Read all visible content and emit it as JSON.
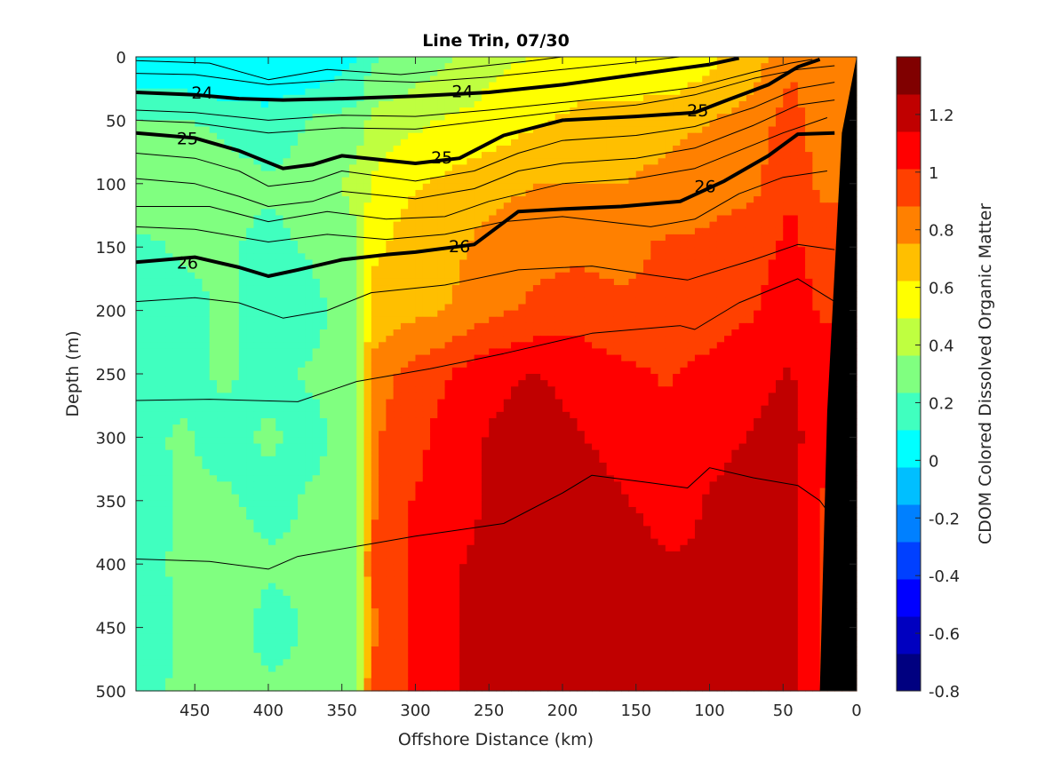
{
  "chart_data": {
    "type": "heatmap",
    "title": "Line Trin, 07/30",
    "xlabel": "Offshore Distance (km)",
    "ylabel": "Depth (m)",
    "colorbar_label": "CDOM Colored Dissolved Organic Matter",
    "x_axis_reversed": true,
    "y_axis_reversed": true,
    "xlim": [
      0,
      490
    ],
    "ylim": [
      0,
      500
    ],
    "x_ticks": [
      450,
      400,
      350,
      300,
      250,
      200,
      150,
      100,
      50,
      0
    ],
    "x_tick_labels": [
      "450",
      "400",
      "350",
      "300",
      "250",
      "200",
      "150",
      "100",
      "50",
      "0"
    ],
    "y_ticks": [
      0,
      50,
      100,
      150,
      200,
      250,
      300,
      350,
      400,
      450,
      500
    ],
    "y_tick_labels": [
      "0",
      "50",
      "100",
      "150",
      "200",
      "250",
      "300",
      "350",
      "400",
      "450",
      "500"
    ],
    "clim": [
      -0.8,
      1.4
    ],
    "colorbar_ticks": [
      -0.8,
      -0.6,
      -0.4,
      -0.2,
      0,
      0.2,
      0.4,
      0.6,
      0.8,
      1,
      1.2
    ],
    "colorbar_tick_labels": [
      "-0.8",
      "-0.6",
      "-0.4",
      "-0.2",
      "0",
      "0.2",
      "0.4",
      "0.6",
      "0.8",
      "1",
      "1.2"
    ],
    "colormap": [
      "#000080",
      "#0000c0",
      "#0000ff",
      "#0040ff",
      "#0080ff",
      "#00bfff",
      "#00ffff",
      "#40ffbf",
      "#80ff80",
      "#bfff40",
      "#ffff00",
      "#ffbf00",
      "#ff8000",
      "#ff4000",
      "#ff0000",
      "#c00000",
      "#800000"
    ],
    "distance_km": [
      490,
      460,
      430,
      400,
      370,
      340,
      330,
      310,
      280,
      250,
      220,
      190,
      160,
      130,
      100,
      70,
      45,
      25
    ],
    "depth_m": [
      0,
      25,
      50,
      100,
      150,
      200,
      250,
      300,
      350,
      400,
      450,
      500
    ],
    "cdom": [
      [
        0.05,
        0.05,
        0.0,
        0.0,
        0.05,
        0.1,
        0.2,
        0.3,
        0.35,
        0.45,
        0.5,
        0.5,
        0.5,
        0.55,
        0.6,
        0.7,
        0.85,
        0.85
      ],
      [
        0.1,
        0.1,
        0.05,
        0.05,
        0.1,
        0.15,
        0.3,
        0.35,
        0.4,
        0.5,
        0.55,
        0.6,
        0.6,
        0.6,
        0.65,
        0.75,
        0.9,
        0.8
      ],
      [
        0.25,
        0.25,
        0.2,
        0.15,
        0.25,
        0.3,
        0.4,
        0.45,
        0.5,
        0.55,
        0.6,
        0.65,
        0.65,
        0.7,
        0.75,
        0.8,
        0.95,
        0.8
      ],
      [
        0.35,
        0.35,
        0.3,
        0.25,
        0.3,
        0.4,
        0.5,
        0.6,
        0.65,
        0.7,
        0.75,
        0.75,
        0.75,
        0.8,
        0.85,
        0.85,
        1.0,
        0.85
      ],
      [
        0.2,
        0.25,
        0.25,
        0.2,
        0.25,
        0.35,
        0.6,
        0.65,
        0.7,
        0.8,
        0.85,
        0.85,
        0.85,
        0.9,
        0.9,
        0.95,
        1.05,
        0.95
      ],
      [
        0.2,
        0.2,
        0.25,
        0.2,
        0.2,
        0.3,
        0.65,
        0.7,
        0.75,
        0.85,
        0.9,
        0.95,
        0.9,
        0.9,
        0.95,
        1.0,
        1.1,
        1.0
      ],
      [
        0.15,
        0.2,
        0.25,
        0.2,
        0.25,
        0.3,
        0.8,
        0.9,
        1.0,
        1.1,
        1.15,
        1.1,
        1.05,
        1.0,
        1.05,
        1.1,
        1.15,
        1.05
      ],
      [
        0.2,
        0.25,
        0.2,
        0.25,
        0.2,
        0.3,
        0.85,
        0.95,
        1.05,
        1.15,
        1.2,
        1.15,
        1.1,
        1.05,
        1.1,
        1.15,
        1.2,
        1.05
      ],
      [
        0.15,
        0.25,
        0.25,
        0.2,
        0.25,
        0.3,
        0.85,
        1.0,
        1.05,
        1.15,
        1.2,
        1.2,
        1.15,
        1.1,
        1.15,
        1.2,
        1.2,
        1.0
      ],
      [
        0.2,
        0.25,
        0.3,
        0.25,
        0.25,
        0.35,
        0.9,
        1.0,
        1.1,
        1.2,
        1.25,
        1.25,
        1.2,
        1.15,
        1.15,
        1.2,
        1.2,
        1.0
      ],
      [
        0.15,
        0.25,
        0.3,
        0.2,
        0.25,
        0.3,
        0.85,
        1.0,
        1.1,
        1.2,
        1.25,
        1.25,
        1.2,
        1.15,
        1.15,
        1.25,
        1.2,
        1.0
      ],
      [
        0.2,
        0.25,
        0.25,
        0.25,
        0.25,
        0.35,
        0.9,
        1.0,
        1.1,
        1.2,
        1.25,
        1.25,
        1.2,
        1.15,
        1.15,
        1.25,
        1.2,
        1.0
      ]
    ],
    "density_contours": [
      {
        "level": "24",
        "labeled": true,
        "points": [
          [
            490,
            28
          ],
          [
            450,
            30
          ],
          [
            420,
            33
          ],
          [
            390,
            34
          ],
          [
            350,
            33
          ],
          [
            300,
            31
          ],
          [
            250,
            28
          ],
          [
            200,
            22
          ],
          [
            150,
            14
          ],
          [
            100,
            6
          ],
          [
            80,
            1
          ]
        ]
      },
      {
        "level": "25",
        "labeled": true,
        "points": [
          [
            490,
            60
          ],
          [
            450,
            64
          ],
          [
            420,
            74
          ],
          [
            390,
            88
          ],
          [
            370,
            85
          ],
          [
            350,
            78
          ],
          [
            300,
            84
          ],
          [
            270,
            80
          ],
          [
            240,
            62
          ],
          [
            200,
            50
          ],
          [
            150,
            47
          ],
          [
            110,
            44
          ],
          [
            90,
            35
          ],
          [
            60,
            22
          ],
          [
            40,
            8
          ],
          [
            25,
            2
          ]
        ]
      },
      {
        "level": "26",
        "labeled": true,
        "points": [
          [
            490,
            162
          ],
          [
            450,
            158
          ],
          [
            420,
            166
          ],
          [
            400,
            173
          ],
          [
            380,
            168
          ],
          [
            350,
            160
          ],
          [
            320,
            156
          ],
          [
            300,
            154
          ],
          [
            260,
            148
          ],
          [
            230,
            122
          ],
          [
            200,
            120
          ],
          [
            160,
            118
          ],
          [
            120,
            114
          ],
          [
            90,
            98
          ],
          [
            60,
            78
          ],
          [
            40,
            61
          ],
          [
            15,
            60
          ]
        ]
      },
      {
        "level": "",
        "labeled": false,
        "points": [
          [
            490,
            3
          ],
          [
            440,
            5
          ],
          [
            400,
            18
          ],
          [
            360,
            10
          ],
          [
            310,
            14
          ],
          [
            260,
            8
          ],
          [
            220,
            3
          ],
          [
            200,
            0
          ]
        ]
      },
      {
        "level": "",
        "labeled": false,
        "points": [
          [
            490,
            13
          ],
          [
            450,
            14
          ],
          [
            400,
            22
          ],
          [
            350,
            18
          ],
          [
            300,
            20
          ],
          [
            250,
            16
          ],
          [
            200,
            10
          ],
          [
            150,
            4
          ],
          [
            120,
            0
          ]
        ]
      },
      {
        "level": "",
        "labeled": false,
        "points": [
          [
            490,
            42
          ],
          [
            450,
            44
          ],
          [
            400,
            50
          ],
          [
            350,
            46
          ],
          [
            300,
            47
          ],
          [
            250,
            42
          ],
          [
            200,
            36
          ],
          [
            150,
            30
          ],
          [
            110,
            24
          ],
          [
            70,
            12
          ],
          [
            45,
            5
          ],
          [
            30,
            2
          ]
        ]
      },
      {
        "level": "",
        "labeled": false,
        "points": [
          [
            490,
            50
          ],
          [
            450,
            52
          ],
          [
            400,
            60
          ],
          [
            350,
            56
          ],
          [
            300,
            57
          ],
          [
            250,
            50
          ],
          [
            200,
            43
          ],
          [
            150,
            38
          ],
          [
            110,
            30
          ],
          [
            70,
            17
          ],
          [
            40,
            10
          ],
          [
            15,
            7
          ]
        ]
      },
      {
        "level": "",
        "labeled": false,
        "points": [
          [
            490,
            76
          ],
          [
            450,
            80
          ],
          [
            420,
            90
          ],
          [
            400,
            102
          ],
          [
            370,
            98
          ],
          [
            350,
            90
          ],
          [
            300,
            98
          ],
          [
            260,
            90
          ],
          [
            230,
            76
          ],
          [
            200,
            66
          ],
          [
            150,
            62
          ],
          [
            110,
            55
          ],
          [
            70,
            40
          ],
          [
            40,
            25
          ],
          [
            15,
            20
          ]
        ]
      },
      {
        "level": "",
        "labeled": false,
        "points": [
          [
            490,
            96
          ],
          [
            450,
            100
          ],
          [
            420,
            110
          ],
          [
            400,
            118
          ],
          [
            370,
            114
          ],
          [
            350,
            106
          ],
          [
            300,
            112
          ],
          [
            260,
            104
          ],
          [
            230,
            90
          ],
          [
            200,
            84
          ],
          [
            150,
            80
          ],
          [
            110,
            72
          ],
          [
            70,
            54
          ],
          [
            40,
            38
          ],
          [
            15,
            34
          ]
        ]
      },
      {
        "level": "",
        "labeled": false,
        "points": [
          [
            490,
            118
          ],
          [
            440,
            118
          ],
          [
            400,
            130
          ],
          [
            360,
            122
          ],
          [
            320,
            128
          ],
          [
            280,
            126
          ],
          [
            250,
            114
          ],
          [
            200,
            100
          ],
          [
            150,
            96
          ],
          [
            110,
            88
          ],
          [
            80,
            74
          ],
          [
            50,
            60
          ],
          [
            20,
            48
          ]
        ]
      },
      {
        "level": "",
        "labeled": false,
        "points": [
          [
            490,
            134
          ],
          [
            450,
            136
          ],
          [
            400,
            146
          ],
          [
            360,
            140
          ],
          [
            320,
            144
          ],
          [
            280,
            140
          ],
          [
            240,
            130
          ],
          [
            200,
            126
          ],
          [
            140,
            134
          ],
          [
            110,
            128
          ],
          [
            80,
            108
          ],
          [
            50,
            95
          ],
          [
            20,
            90
          ]
        ]
      },
      {
        "level": "",
        "labeled": false,
        "points": [
          [
            490,
            193
          ],
          [
            450,
            190
          ],
          [
            420,
            194
          ],
          [
            390,
            206
          ],
          [
            360,
            200
          ],
          [
            330,
            186
          ],
          [
            280,
            180
          ],
          [
            230,
            168
          ],
          [
            180,
            165
          ],
          [
            140,
            172
          ],
          [
            115,
            176
          ],
          [
            70,
            160
          ],
          [
            40,
            148
          ],
          [
            15,
            152
          ]
        ]
      },
      {
        "level": "",
        "labeled": false,
        "points": [
          [
            490,
            271
          ],
          [
            440,
            270
          ],
          [
            380,
            272
          ],
          [
            340,
            256
          ],
          [
            290,
            246
          ],
          [
            240,
            234
          ],
          [
            180,
            218
          ],
          [
            120,
            212
          ],
          [
            110,
            215
          ],
          [
            80,
            194
          ],
          [
            40,
            175
          ],
          [
            15,
            193
          ]
        ]
      },
      {
        "level": "",
        "labeled": false,
        "points": [
          [
            490,
            396
          ],
          [
            440,
            398
          ],
          [
            400,
            404
          ],
          [
            380,
            394
          ],
          [
            340,
            386
          ],
          [
            300,
            378
          ],
          [
            240,
            368
          ],
          [
            200,
            344
          ],
          [
            180,
            330
          ],
          [
            140,
            336
          ],
          [
            115,
            340
          ],
          [
            100,
            324
          ],
          [
            70,
            332
          ],
          [
            40,
            338
          ],
          [
            25,
            350
          ],
          [
            15,
            366
          ]
        ]
      }
    ],
    "contour_label_positions": [
      {
        "text": "24",
        "x": 445,
        "y": 28
      },
      {
        "text": "24",
        "x": 268,
        "y": 27
      },
      {
        "text": "25",
        "x": 455,
        "y": 64
      },
      {
        "text": "25",
        "x": 282,
        "y": 79
      },
      {
        "text": "25",
        "x": 108,
        "y": 42
      },
      {
        "text": "26",
        "x": 455,
        "y": 162
      },
      {
        "text": "26",
        "x": 270,
        "y": 149
      },
      {
        "text": "26",
        "x": 103,
        "y": 102
      }
    ],
    "bathymetry_mask": [
      [
        25,
        500
      ],
      [
        20,
        280
      ],
      [
        10,
        60
      ],
      [
        0,
        0
      ],
      [
        -2,
        0
      ],
      [
        -2,
        500
      ]
    ],
    "grid": false,
    "legend": "none"
  }
}
